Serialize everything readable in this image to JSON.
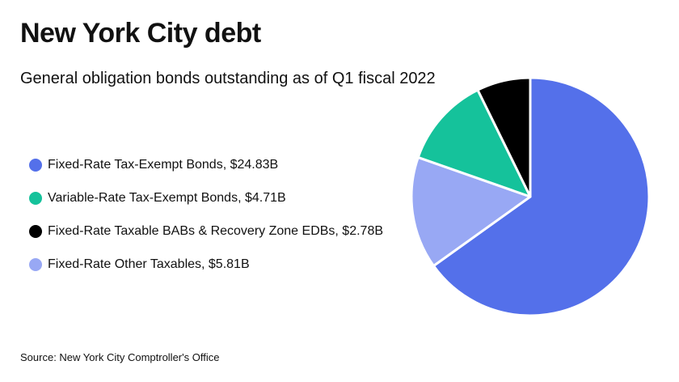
{
  "chart_data": {
    "type": "pie",
    "title": "New York City debt",
    "subtitle": "General obligation bonds outstanding as of Q1 fiscal 2022",
    "source": "Source: New York City Comptroller's Office",
    "start_category": "Fixed-Rate Tax-Exempt Bonds",
    "slices": [
      {
        "name": "Fixed-Rate Tax-Exempt Bonds",
        "value": 24.83,
        "label": "Fixed-Rate Tax-Exempt Bonds, $24.83B",
        "color": "#5470ea"
      },
      {
        "name": "Fixed-Rate Other Taxables",
        "value": 5.81,
        "label": "Fixed-Rate Other Taxables, $5.81B",
        "color": "#98a8f4"
      },
      {
        "name": "Variable-Rate Tax-Exempt Bonds",
        "value": 4.71,
        "label": "Variable-Rate Tax-Exempt Bonds, $4.71B",
        "color": "#15c29b"
      },
      {
        "name": "Fixed-Rate Taxable BABs & Recovery Zone EDBs",
        "value": 2.78,
        "label": "Fixed-Rate Taxable BABs & Recovery Zone EDBs, $2.78B",
        "color": "#000000"
      }
    ],
    "legend": [
      {
        "label": "Fixed-Rate Tax-Exempt Bonds, $24.83B",
        "color": "#5470ea"
      },
      {
        "label": "Variable-Rate Tax-Exempt Bonds, $4.71B",
        "color": "#15c29b"
      },
      {
        "label": "Fixed-Rate Taxable BABs & Recovery Zone EDBs, $2.78B",
        "color": "#000000"
      },
      {
        "label": "Fixed-Rate Other Taxables, $5.81B",
        "color": "#98a8f4"
      }
    ],
    "legend_placement": "left",
    "slice_border_color": "#ffffff"
  }
}
